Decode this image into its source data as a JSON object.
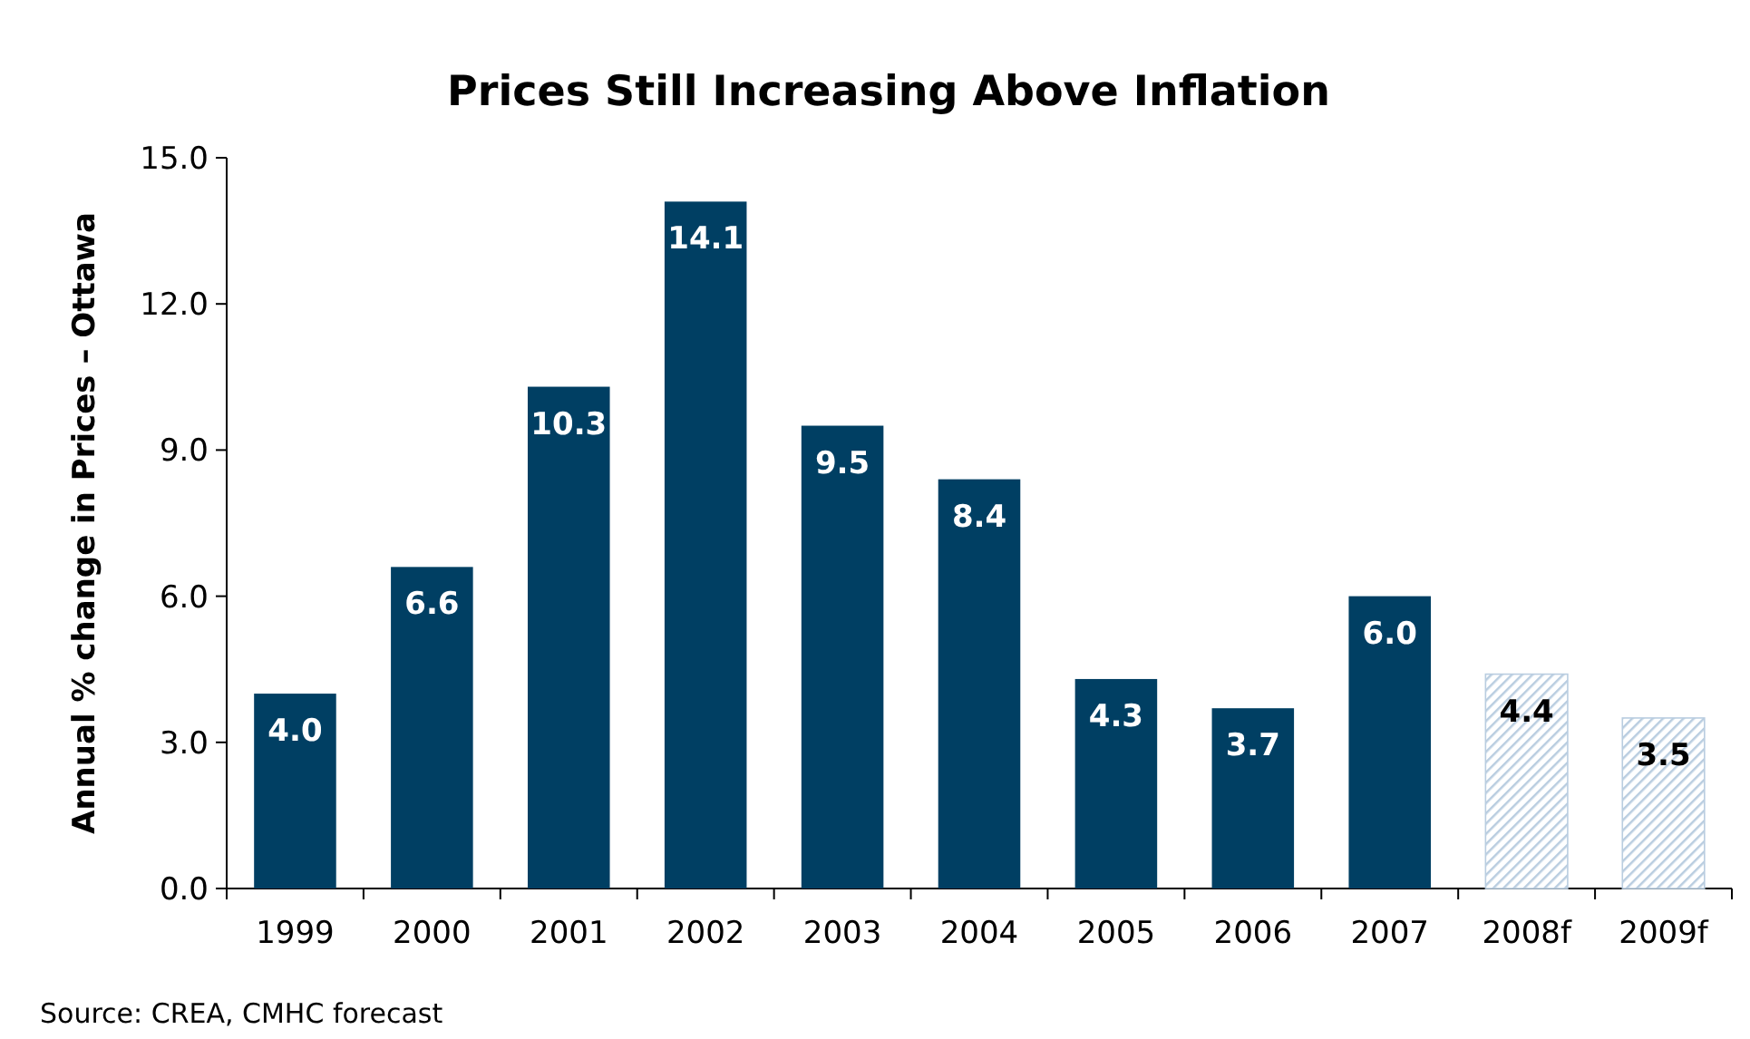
{
  "chart_data": {
    "type": "bar",
    "title": "Prices Still Increasing Above Inflation",
    "ylabel": "Annual % change in Prices – Ottawa",
    "categories": [
      "1999",
      "2000",
      "2001",
      "2002",
      "2003",
      "2004",
      "2005",
      "2006",
      "2007",
      "2008f",
      "2009f"
    ],
    "values": [
      4.0,
      6.6,
      10.3,
      14.1,
      9.5,
      8.4,
      4.3,
      3.7,
      6.0,
      4.4,
      3.5
    ],
    "colors": [
      "#003f63",
      "#003f63",
      "#003f63",
      "#003f63",
      "#003f63",
      "#003f63",
      "#003f63",
      "#003f63",
      "#003f63",
      "#b9cde0",
      "#b9cde0"
    ],
    "ylim": [
      0,
      15
    ],
    "yticks": [
      {
        "value": 0,
        "label": "0.0"
      },
      {
        "value": 3,
        "label": "3.0"
      },
      {
        "value": 6,
        "label": "6.0"
      },
      {
        "value": 9,
        "label": "9.0"
      },
      {
        "value": 12,
        "label": "12.0"
      },
      {
        "value": 15,
        "label": "15.0"
      }
    ],
    "value_labels": [
      "4.0",
      "6.6",
      "10.3",
      "14.1",
      "9.5",
      "8.4",
      "4.3",
      "3.7",
      "6.0",
      "4.4",
      "3.5"
    ],
    "annotations": [
      "Source: CREA, CMHC forecast"
    ]
  }
}
